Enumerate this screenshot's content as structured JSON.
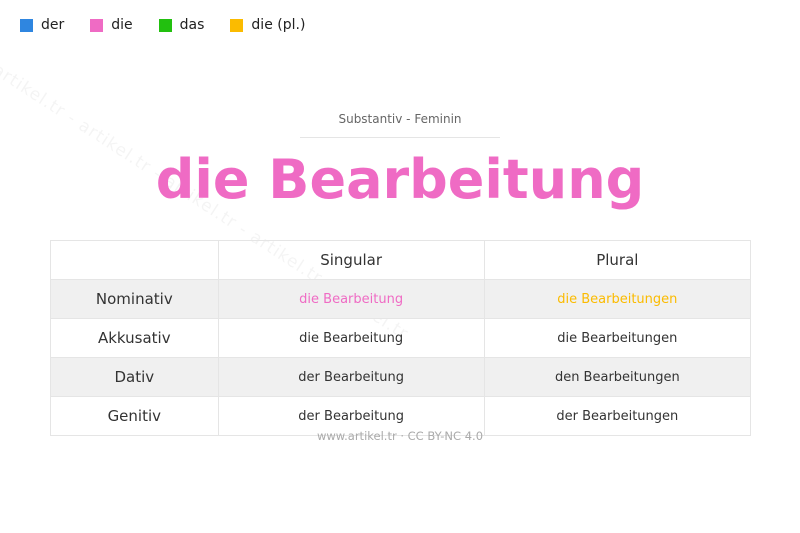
{
  "legend": [
    {
      "label": "der",
      "color": "#2f86e0"
    },
    {
      "label": "die",
      "color": "#ef6bc4"
    },
    {
      "label": "das",
      "color": "#22c00f"
    },
    {
      "label": "die (pl.)",
      "color": "#fbbb00"
    }
  ],
  "watermark": "artikel.tr - artikel.tr - artikel.tr - artikel.tr - artikel.tr",
  "subtitle": "Substantiv  -  Feminin",
  "title": "die Bearbeitung",
  "table": {
    "headers": [
      "",
      "Singular",
      "Plural"
    ],
    "rows": [
      {
        "case": "Nominativ",
        "singular": "die Bearbeitung",
        "plural": "die Bearbeitungen"
      },
      {
        "case": "Akkusativ",
        "singular": "die Bearbeitung",
        "plural": "die Bearbeitungen"
      },
      {
        "case": "Dativ",
        "singular": "der Bearbeitung",
        "plural": "den Bearbeitungen"
      },
      {
        "case": "Genitiv",
        "singular": "der Bearbeitung",
        "plural": "der Bearbeitungen"
      }
    ],
    "nominativ_singular_color": "#ef6bc4",
    "nominativ_plural_color": "#fbbb00"
  },
  "footer": "www.artikel.tr · CC BY-NC 4.0"
}
